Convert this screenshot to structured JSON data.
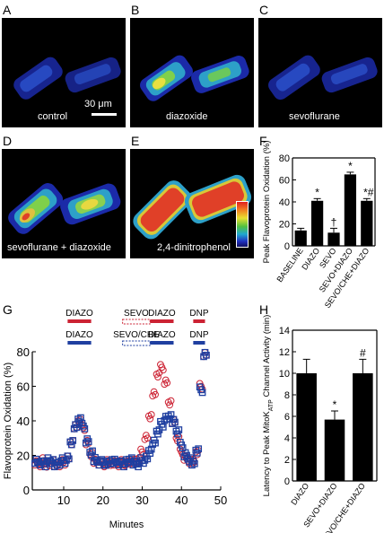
{
  "panels": {
    "A": {
      "letter": "A",
      "caption": "control"
    },
    "B": {
      "letter": "B",
      "caption": "diazoxide"
    },
    "C": {
      "letter": "C",
      "caption": "sevoflurane"
    },
    "D": {
      "letter": "D",
      "caption": "sevoflurane + diazoxide"
    },
    "E": {
      "letter": "E",
      "caption": "2,4-dinitrophenol"
    },
    "F": {
      "letter": "F"
    },
    "G": {
      "letter": "G"
    },
    "H": {
      "letter": "H"
    }
  },
  "scale_bar": {
    "label": "30 μm"
  },
  "chart_data": [
    {
      "id": "F",
      "type": "bar",
      "ylabel": "Peak Flavoprotein Oxidation (%)",
      "ylim": [
        0,
        80
      ],
      "yticks": [
        0,
        20,
        40,
        60,
        80
      ],
      "categories": [
        "BASELINE",
        "DIAZO",
        "SEVO",
        "SEVO+DIAZO",
        "SEVO/CHE+DIAZO"
      ],
      "values": [
        14,
        41,
        12,
        65,
        41
      ],
      "errors": [
        2,
        2,
        4,
        2,
        2
      ],
      "markers": [
        "",
        "*",
        "†",
        "*",
        "*#"
      ],
      "bar_color": "#000000"
    },
    {
      "id": "G",
      "type": "scatter",
      "xlabel": "Minutes",
      "ylabel": "Flavoprotein Oxidation (%)",
      "xlim": [
        2,
        50
      ],
      "ylim": [
        0,
        80
      ],
      "xticks": [
        10,
        20,
        30,
        40,
        50
      ],
      "yticks": [
        0,
        20,
        40,
        60,
        80
      ],
      "treatment_bars": {
        "red_row": [
          {
            "label": "DIAZO",
            "start": 11,
            "end": 17
          },
          {
            "label": "SEVO",
            "start": 25,
            "end": 32,
            "dashed": true
          },
          {
            "label": "DIAZO",
            "start": 32,
            "end": 38
          },
          {
            "label": "DNP",
            "start": 43,
            "end": 46
          }
        ],
        "blue_row": [
          {
            "label": "DIAZO",
            "start": 11,
            "end": 17
          },
          {
            "label": "SEVO/CHE",
            "start": 25,
            "end": 32,
            "dashed": true
          },
          {
            "label": "DIAZO",
            "start": 32,
            "end": 38
          },
          {
            "label": "DNP",
            "start": 43,
            "end": 46
          }
        ]
      },
      "series": [
        {
          "marker": "circle",
          "color": "#cc2233",
          "x": [
            3,
            4,
            5,
            6,
            7,
            8,
            9,
            10,
            11,
            12,
            13,
            14,
            15,
            16,
            17,
            18,
            19,
            20,
            21,
            22,
            23,
            24,
            25,
            26,
            27,
            28,
            29,
            30,
            31,
            32,
            33,
            34,
            35,
            36,
            37,
            38,
            39,
            40,
            41,
            42,
            43,
            44,
            45,
            46
          ],
          "y": [
            16,
            15,
            17,
            14,
            16,
            15,
            15,
            16,
            18,
            27,
            37,
            40,
            36,
            27,
            20,
            17,
            16,
            15,
            16,
            15,
            16,
            15,
            16,
            15,
            16,
            17,
            18,
            22,
            30,
            42,
            56,
            67,
            71,
            62,
            50,
            40,
            30,
            22,
            18,
            16,
            17,
            22,
            60,
            78
          ]
        },
        {
          "marker": "square",
          "color": "#1f3fa0",
          "x": [
            3,
            4,
            5,
            6,
            7,
            8,
            9,
            10,
            11,
            12,
            13,
            14,
            15,
            16,
            17,
            18,
            19,
            20,
            21,
            22,
            23,
            24,
            25,
            26,
            27,
            28,
            29,
            30,
            31,
            32,
            33,
            34,
            35,
            36,
            37,
            38,
            39,
            40,
            41,
            42,
            43,
            44,
            45,
            46
          ],
          "y": [
            17,
            16,
            15,
            17,
            16,
            15,
            16,
            17,
            18,
            27,
            37,
            41,
            37,
            28,
            21,
            18,
            16,
            16,
            15,
            16,
            17,
            16,
            15,
            16,
            17,
            16,
            15,
            17,
            18,
            22,
            28,
            34,
            38,
            41,
            42,
            40,
            34,
            26,
            20,
            17,
            16,
            23,
            58,
            78
          ]
        }
      ]
    },
    {
      "id": "H",
      "type": "bar",
      "ylabel": "Latency to Peak MitoK<sub>ATP</sub> Channel Activity (min)",
      "ylim": [
        0,
        14
      ],
      "yticks": [
        0,
        2,
        4,
        6,
        8,
        10,
        12,
        14
      ],
      "categories": [
        "DIAZO",
        "SEVO+DIAZO",
        "SEVO/CHE+DIAZO"
      ],
      "values": [
        10,
        5.7,
        10
      ],
      "errors": [
        1.3,
        0.8,
        1.3
      ],
      "markers": [
        "",
        "*",
        "#"
      ],
      "bar_color": "#000000"
    }
  ]
}
